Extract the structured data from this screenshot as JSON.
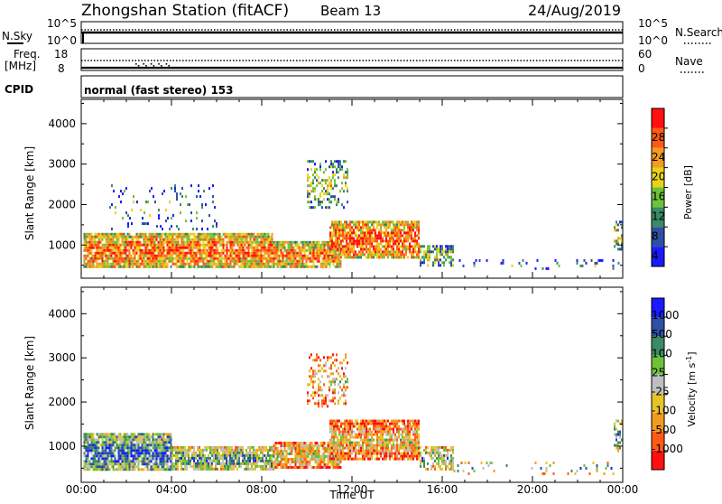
{
  "header": {
    "station": "Zhongshan Station (fitACF)",
    "beam": "Beam 13",
    "date": "24/Aug/2019"
  },
  "top_panels": {
    "nsky_label": "N.Sky",
    "nsky_ticks": [
      "10^5",
      "10^0"
    ],
    "nsearch_label": "N.Search",
    "nsearch_ticks": [
      "10^5",
      "10^0"
    ],
    "freq_label": "Freq.",
    "freq_unit": "[MHz]",
    "freq_ticks": [
      "18",
      "8"
    ],
    "nave_label": "Nave",
    "nave_ticks": [
      "60",
      "0"
    ],
    "cpid_label": "CPID",
    "cpid_text": "normal (fast stereo) 153"
  },
  "x_axis": {
    "label": "Time UT",
    "ticks": [
      "00:00",
      "04:00",
      "08:00",
      "12:00",
      "16:00",
      "20:00",
      "00:00"
    ]
  },
  "colors": {
    "power_scale": [
      "#1a1aff",
      "#2e4fa3",
      "#3a8a64",
      "#6ec23a",
      "#e8d21a",
      "#f49a20",
      "#ff5a14",
      "#ff1010"
    ],
    "velocity_scale": [
      "#ff1010",
      "#ff5a14",
      "#f49a20",
      "#e8c22a",
      "#bfbfbf",
      "#6ec23a",
      "#3a8a64",
      "#2e4fa3",
      "#1a1aff"
    ]
  },
  "chart_data": [
    {
      "type": "heatmap",
      "panel": "power",
      "ylabel": "Slant Range [km]",
      "ylim": [
        180,
        4600
      ],
      "yticks": [
        1000,
        2000,
        3000,
        4000
      ],
      "xlim_hours": [
        0,
        24
      ],
      "colorbar_label": "Power [dB]",
      "colorbar_ticks": [
        "4",
        "8",
        "12",
        "16",
        "20",
        "24",
        "28"
      ],
      "scatter_regions": [
        {
          "t0": 0.1,
          "t1": 8.5,
          "r0": 450,
          "r1": 1300,
          "density": 0.9,
          "bias": 0.75
        },
        {
          "t0": 8.5,
          "t1": 11.5,
          "r0": 450,
          "r1": 1100,
          "density": 0.85,
          "bias": 0.7
        },
        {
          "t0": 11.0,
          "t1": 15.0,
          "r0": 700,
          "r1": 1600,
          "density": 0.85,
          "bias": 0.82
        },
        {
          "t0": 15.0,
          "t1": 16.5,
          "r0": 500,
          "r1": 1000,
          "density": 0.6,
          "bias": 0.35
        },
        {
          "t0": 16.5,
          "t1": 23.8,
          "r0": 400,
          "r1": 650,
          "density": 0.12,
          "bias": 0.1
        },
        {
          "t0": 10.0,
          "t1": 11.8,
          "r0": 1900,
          "r1": 3100,
          "density": 0.35,
          "bias": 0.3
        },
        {
          "t0": 1.0,
          "t1": 6.0,
          "r0": 1400,
          "r1": 2500,
          "density": 0.08,
          "bias": 0.1
        },
        {
          "t0": 23.6,
          "t1": 24.0,
          "r0": 900,
          "r1": 1600,
          "density": 0.5,
          "bias": 0.45
        }
      ]
    },
    {
      "type": "heatmap",
      "panel": "velocity",
      "ylabel": "Slant Range [km]",
      "ylim": [
        180,
        4600
      ],
      "yticks": [
        1000,
        2000,
        3000,
        4000
      ],
      "xlim_hours": [
        0,
        24
      ],
      "colorbar_label": "Velocity [m s^-1]",
      "colorbar_ticks": [
        "1000",
        "500",
        "100",
        "25",
        "-25",
        "-100",
        "-500",
        "-1000"
      ],
      "scatter_regions": [
        {
          "t0": 0.1,
          "t1": 4.0,
          "r0": 450,
          "r1": 1300,
          "density": 0.9,
          "bias": 0.75
        },
        {
          "t0": 4.0,
          "t1": 8.5,
          "r0": 450,
          "r1": 1000,
          "density": 0.85,
          "bias": 0.55
        },
        {
          "t0": 8.5,
          "t1": 11.5,
          "r0": 500,
          "r1": 1100,
          "density": 0.85,
          "bias": 0.3
        },
        {
          "t0": 11.0,
          "t1": 15.0,
          "r0": 700,
          "r1": 1600,
          "density": 0.85,
          "bias": 0.2
        },
        {
          "t0": 15.0,
          "t1": 16.5,
          "r0": 500,
          "r1": 1000,
          "density": 0.6,
          "bias": 0.5
        },
        {
          "t0": 16.5,
          "t1": 23.8,
          "r0": 400,
          "r1": 650,
          "density": 0.12,
          "bias": 0.55
        },
        {
          "t0": 10.0,
          "t1": 11.8,
          "r0": 1900,
          "r1": 3100,
          "density": 0.35,
          "bias": 0.2
        },
        {
          "t0": 23.6,
          "t1": 24.0,
          "r0": 900,
          "r1": 1600,
          "density": 0.5,
          "bias": 0.6
        }
      ]
    }
  ]
}
